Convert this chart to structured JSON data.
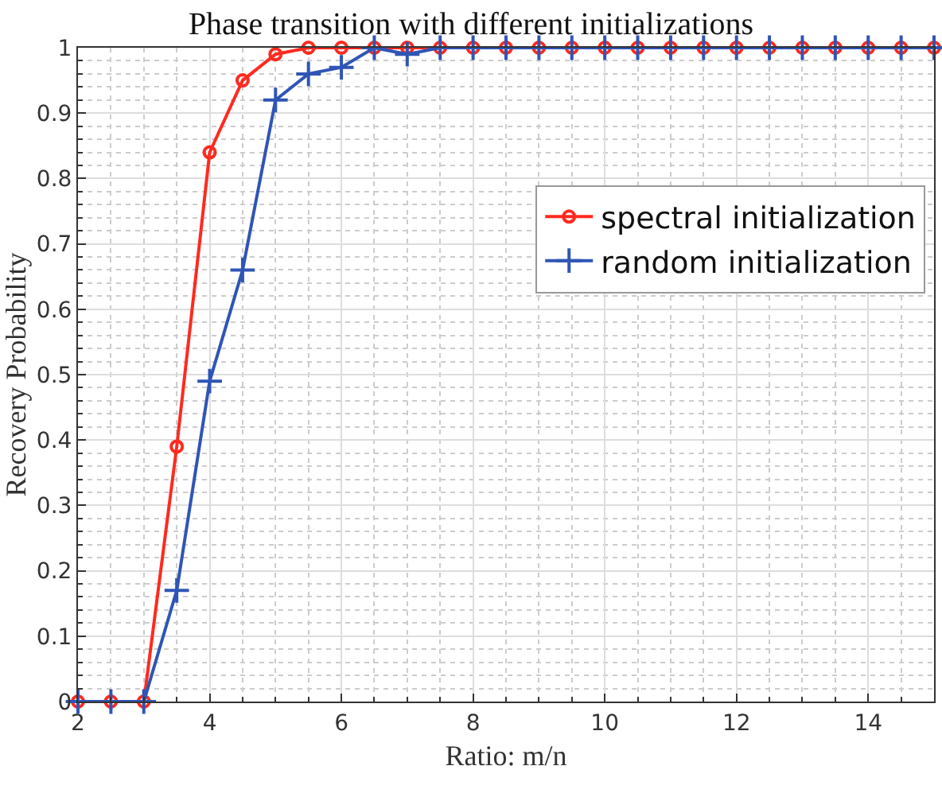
{
  "chart_data": {
    "type": "line",
    "title": "Phase transition with different initializations",
    "xlabel": "Ratio: m/n",
    "ylabel": "Recovery Probability",
    "x": [
      2,
      2.5,
      3,
      3.5,
      4,
      4.5,
      5,
      5.5,
      6,
      6.5,
      7,
      7.5,
      8,
      8.5,
      9,
      9.5,
      10,
      10.5,
      11,
      11.5,
      12,
      12.5,
      13,
      13.5,
      14,
      14.5,
      15
    ],
    "series": [
      {
        "name": "spectral initialization",
        "color": "#ff2a1f",
        "marker": "circle",
        "values": [
          0,
          0,
          0,
          0.39,
          0.84,
          0.95,
          0.99,
          1,
          1,
          1,
          1,
          1,
          1,
          1,
          1,
          1,
          1,
          1,
          1,
          1,
          1,
          1,
          1,
          1,
          1,
          1,
          1
        ]
      },
      {
        "name": "random initialization",
        "color": "#2f55b5",
        "marker": "cross",
        "values": [
          0,
          0,
          0,
          0.17,
          0.49,
          0.66,
          0.92,
          0.96,
          0.97,
          1,
          0.99,
          1,
          1,
          1,
          1,
          1,
          1,
          1,
          1,
          1,
          1,
          1,
          1,
          1,
          1,
          1,
          1
        ]
      }
    ],
    "xlim": [
      2,
      15
    ],
    "xticks": [
      2,
      4,
      6,
      8,
      10,
      12,
      14
    ],
    "ylim": [
      0,
      1
    ],
    "yticks": [
      0,
      0.1,
      0.2,
      0.3,
      0.4,
      0.5,
      0.6,
      0.7,
      0.8,
      0.9,
      1
    ],
    "grid": true,
    "legend": "top right",
    "line_style": "solid"
  }
}
